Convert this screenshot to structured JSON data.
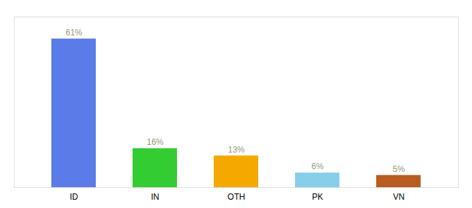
{
  "chart_data": {
    "type": "bar",
    "categories": [
      "ID",
      "IN",
      "OTH",
      "PK",
      "VN"
    ],
    "values": [
      61,
      16,
      13,
      6,
      5
    ],
    "value_labels": [
      "61%",
      "16%",
      "13%",
      "6%",
      "5%"
    ],
    "colors": [
      "#5b7be8",
      "#33cc33",
      "#f5a800",
      "#87ceeb",
      "#b85c20"
    ],
    "ylim": [
      0,
      70
    ],
    "data_labels": true,
    "tick_labels": "x",
    "grid": false
  }
}
